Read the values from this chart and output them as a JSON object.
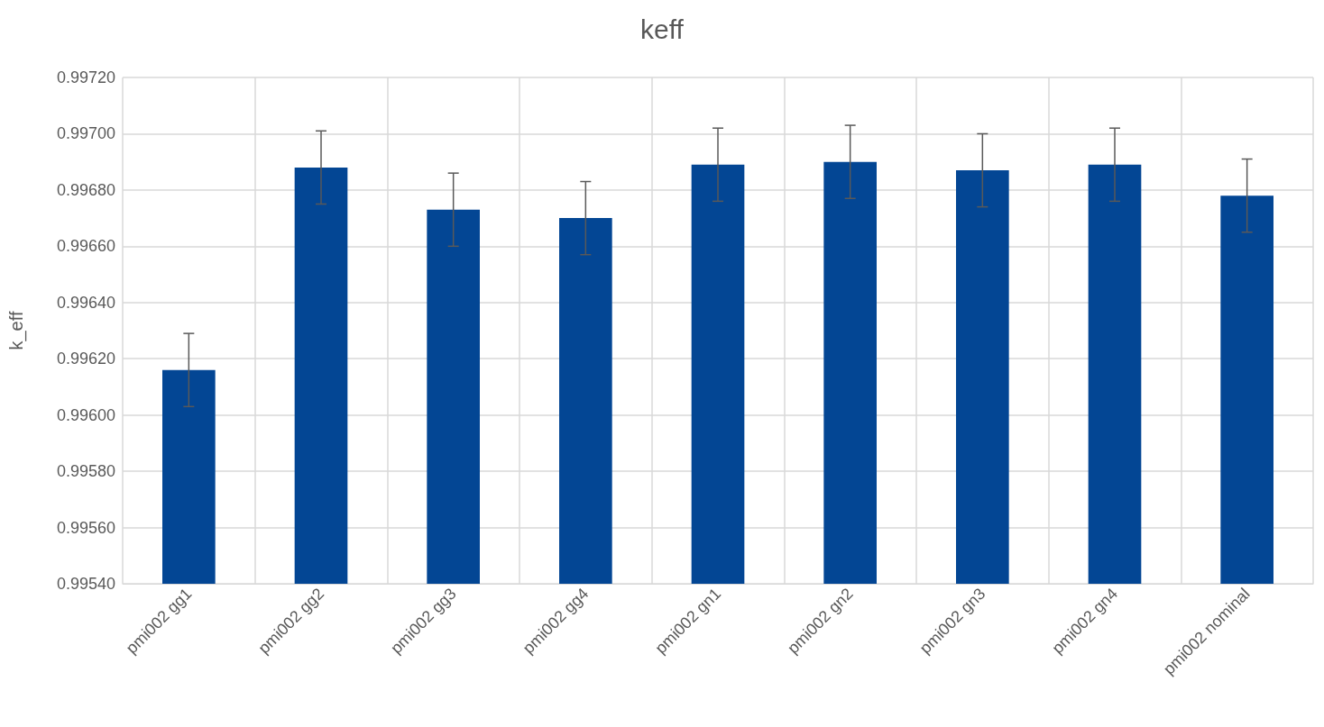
{
  "chart_data": {
    "type": "bar",
    "title": "keff",
    "ylabel": "k_eff",
    "categories": [
      "pmi002 gg1",
      "pmi002 gg2",
      "pmi002 gg3",
      "pmi002 gg4",
      "pmi002 gn1",
      "pmi002 gn2",
      "pmi002 gn3",
      "pmi002 gn4",
      "pmi002 nominal"
    ],
    "values": [
      0.99616,
      0.99688,
      0.99673,
      0.9967,
      0.99689,
      0.9969,
      0.99687,
      0.99689,
      0.99678
    ],
    "errors": [
      0.00013,
      0.00013,
      0.00013,
      0.00013,
      0.00013,
      0.00013,
      0.00013,
      0.00013,
      0.00013
    ],
    "color": "#034694",
    "ylim": [
      0.9954,
      0.9972
    ],
    "yticks": [
      {
        "value": 0.9954,
        "label": "0.99540"
      },
      {
        "value": 0.9956,
        "label": "0.99560"
      },
      {
        "value": 0.9958,
        "label": "0.99580"
      },
      {
        "value": 0.996,
        "label": "0.99600"
      },
      {
        "value": 0.9962,
        "label": "0.99620"
      },
      {
        "value": 0.9964,
        "label": "0.99640"
      },
      {
        "value": 0.9966,
        "label": "0.99660"
      },
      {
        "value": 0.9968,
        "label": "0.99680"
      },
      {
        "value": 0.997,
        "label": "0.99700"
      },
      {
        "value": 0.9972,
        "label": "0.99720"
      }
    ],
    "grid": true
  }
}
